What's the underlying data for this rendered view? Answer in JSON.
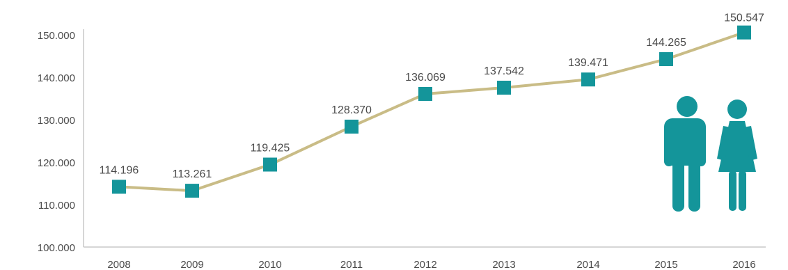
{
  "chart_data": {
    "type": "line",
    "title": "",
    "xlabel": "",
    "ylabel": "",
    "categories": [
      "2008",
      "2009",
      "2010",
      "2011",
      "2012",
      "2013",
      "2014",
      "2015",
      "2016"
    ],
    "series": [
      {
        "values": [
          114196,
          113261,
          119425,
          128370,
          136069,
          137542,
          139471,
          144265,
          150547
        ],
        "data_labels": [
          "114.196",
          "113.261",
          "119.425",
          "128.370",
          "136.069",
          "137.542",
          "139.471",
          "144.265",
          "150.547"
        ]
      }
    ],
    "y_ticks": [
      100000,
      110000,
      120000,
      130000,
      140000,
      150000
    ],
    "y_tick_labels": [
      "100.000",
      "110.000",
      "120.000",
      "130.000",
      "140.000",
      "150.000"
    ],
    "ylim": [
      100000,
      150000
    ],
    "grid": false,
    "legend": "none",
    "colors": {
      "line": "#c9bc86",
      "marker": "#14959a",
      "icon": "#14959a",
      "axis": "#c9c9c9",
      "text": "#4a4a4a"
    },
    "icons": [
      "male-person-icon",
      "female-person-icon"
    ]
  }
}
